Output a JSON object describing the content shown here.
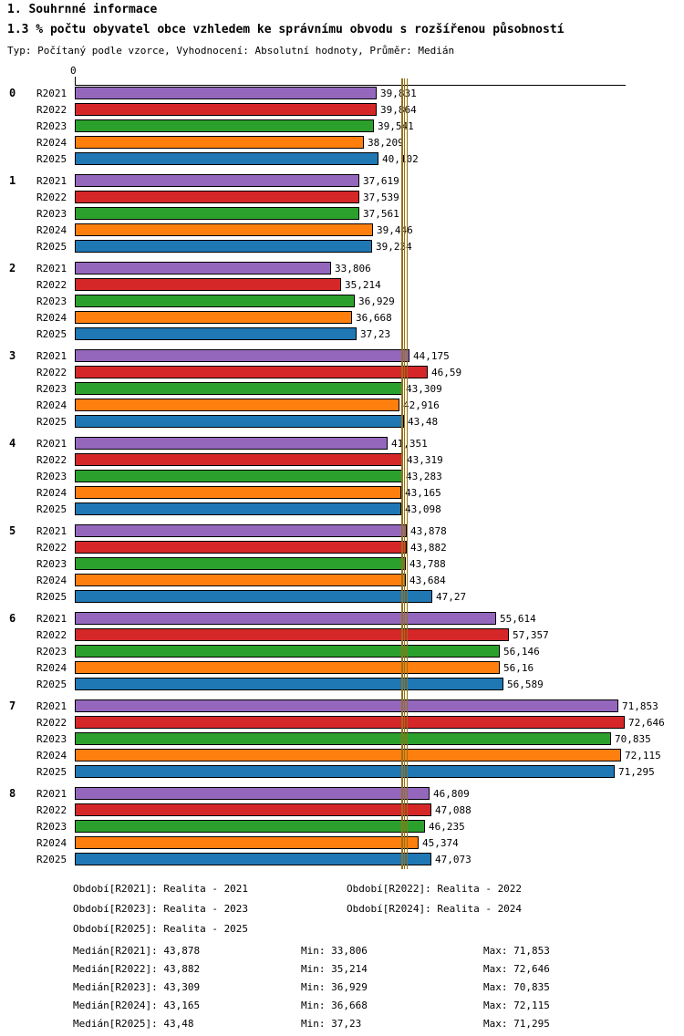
{
  "header": {
    "title": "1. Souhrnné informace",
    "subtitle": "1.3 % počtu obyvatel obce vzhledem ke správnímu obvodu s rozšířenou působností",
    "meta": "Typ: Počítaný podle vzorce, Vyhodnocení: Absolutní hodnoty, Průměr: Medián"
  },
  "chart_data": {
    "type": "bar",
    "orientation": "horizontal",
    "x_axis": {
      "origin_label": "0",
      "min": 0,
      "max": 72.8,
      "grid": false
    },
    "categories": [
      "0",
      "1",
      "2",
      "3",
      "4",
      "5",
      "6",
      "7",
      "8"
    ],
    "series": [
      {
        "name": "R2021",
        "color": "#9467bd",
        "values": [
          39.831,
          37.619,
          33.806,
          44.175,
          41.351,
          43.878,
          55.614,
          71.853,
          46.809
        ],
        "value_labels": [
          "39,831",
          "37,619",
          "33,806",
          "44,175",
          "41,351",
          "43,878",
          "55,614",
          "71,853",
          "46,809"
        ]
      },
      {
        "name": "R2022",
        "color": "#d62728",
        "values": [
          39.864,
          37.539,
          35.214,
          46.59,
          43.319,
          43.882,
          57.357,
          72.646,
          47.088
        ],
        "value_labels": [
          "39,864",
          "37,539",
          "35,214",
          "46,59",
          "43,319",
          "43,882",
          "57,357",
          "72,646",
          "47,088"
        ]
      },
      {
        "name": "R2023",
        "color": "#2ca02c",
        "values": [
          39.541,
          37.561,
          36.929,
          43.309,
          43.283,
          43.788,
          56.146,
          70.835,
          46.235
        ],
        "value_labels": [
          "39,541",
          "37,561",
          "36,929",
          "43,309",
          "43,283",
          "43,788",
          "56,146",
          "70,835",
          "46,235"
        ]
      },
      {
        "name": "R2024",
        "color": "#ff7f0e",
        "values": [
          38.209,
          39.446,
          36.668,
          42.916,
          43.165,
          43.684,
          56.16,
          72.115,
          45.374
        ],
        "value_labels": [
          "38,209",
          "39,446",
          "36,668",
          "42,916",
          "43,165",
          "43,684",
          "56,16",
          "72,115",
          "45,374"
        ]
      },
      {
        "name": "R2025",
        "color": "#1f77b4",
        "values": [
          40.102,
          39.234,
          37.23,
          43.48,
          43.098,
          47.27,
          56.589,
          71.295,
          47.073
        ],
        "value_labels": [
          "40,102",
          "39,234",
          "37,23",
          "43,48",
          "43,098",
          "47,27",
          "56,589",
          "71,295",
          "47,073"
        ]
      }
    ],
    "median_lines": [
      {
        "name": "R2021",
        "value": 43.878
      },
      {
        "name": "R2022",
        "value": 43.882
      },
      {
        "name": "R2023",
        "value": 43.309
      },
      {
        "name": "R2024",
        "value": 43.165
      },
      {
        "name": "R2025",
        "value": 43.48
      }
    ],
    "median_line_color": "#967117",
    "legend_position": "bottom"
  },
  "legend": {
    "items": [
      "Období[R2021]: Realita - 2021",
      "Období[R2022]: Realita - 2022",
      "Období[R2023]: Realita - 2023",
      "Období[R2024]: Realita - 2024",
      "Období[R2025]: Realita - 2025"
    ]
  },
  "stats": {
    "rows": [
      {
        "median": "Medián[R2021]: 43,878",
        "min": "Min: 33,806",
        "max": "Max: 71,853"
      },
      {
        "median": "Medián[R2022]: 43,882",
        "min": "Min: 35,214",
        "max": "Max: 72,646"
      },
      {
        "median": "Medián[R2023]: 43,309",
        "min": "Min: 36,929",
        "max": "Max: 70,835"
      },
      {
        "median": "Medián[R2024]: 43,165",
        "min": "Min: 36,668",
        "max": "Max: 72,115"
      },
      {
        "median": "Medián[R2025]: 43,48",
        "min": "Min: 37,23",
        "max": "Max: 71,295"
      }
    ]
  }
}
